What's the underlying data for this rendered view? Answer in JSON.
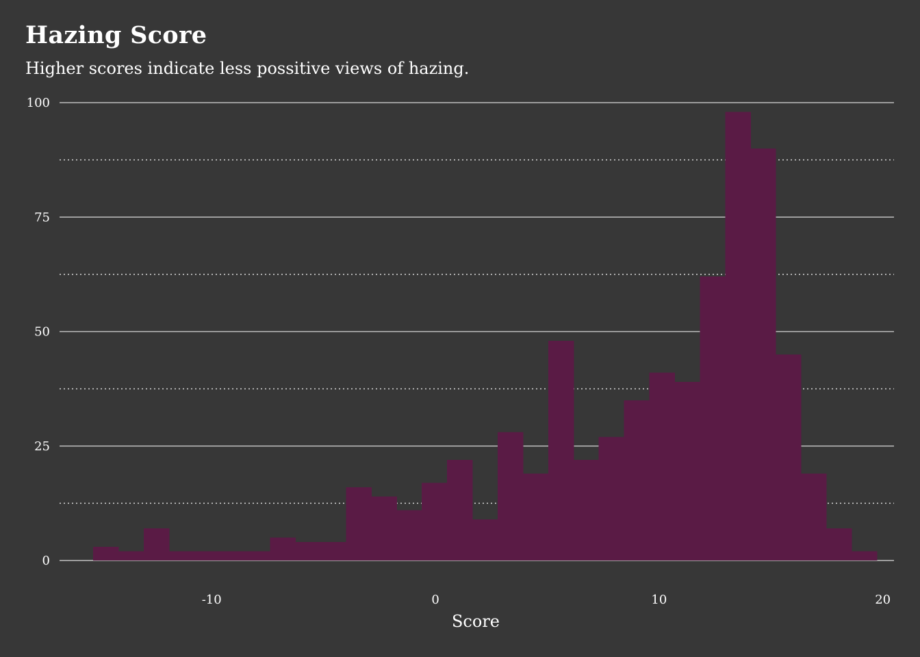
{
  "colors": {
    "background": "#373737",
    "bar_fill": "#5a1b45",
    "grid_major": "#bfbfbf",
    "grid_minor": "#d8d8d8",
    "text": "#ffffff"
  },
  "chart_data": {
    "type": "bar",
    "title": "Hazing Score",
    "subtitle": "Higher scores indicate less possitive views of hazing.",
    "xlabel": "Score",
    "ylabel": "",
    "xlim": [
      -16.8,
      20.5
    ],
    "ylim": [
      0,
      100
    ],
    "x_ticks": [
      -10,
      0,
      10,
      20
    ],
    "x_tick_labels": [
      "-10",
      "0",
      "10",
      "20"
    ],
    "y_ticks": [
      0,
      25,
      50,
      75,
      100
    ],
    "y_tick_labels": [
      "0",
      "25",
      "50",
      "75",
      "100"
    ],
    "y_minor_ticks": [
      12.5,
      37.5,
      62.5,
      87.5
    ],
    "grid": true,
    "bin_width": 1.13,
    "bins_start": -15.3,
    "counts": [
      3,
      2,
      7,
      2,
      2,
      2,
      2,
      5,
      4,
      4,
      16,
      14,
      11,
      17,
      22,
      9,
      28,
      19,
      48,
      22,
      27,
      35,
      41,
      39,
      62,
      98,
      90,
      45,
      19,
      7,
      2
    ]
  }
}
